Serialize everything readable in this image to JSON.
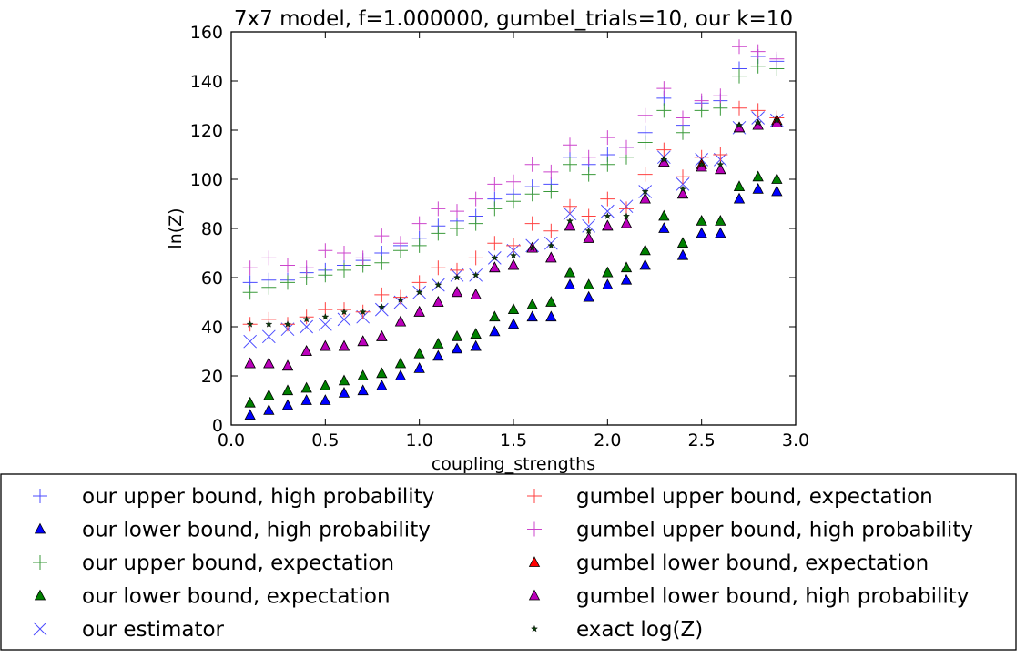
{
  "chart_data": {
    "type": "scatter",
    "title": "7x7 model, f=1.000000, gumbel_trials=10, our k=10",
    "xlabel": "coupling_strengths",
    "ylabel": "ln(Z)",
    "xlim": [
      0.0,
      3.0
    ],
    "ylim": [
      0,
      160
    ],
    "x_ticks": [
      "0.0",
      "0.5",
      "1.0",
      "1.5",
      "2.0",
      "2.5",
      "3.0"
    ],
    "y_ticks": [
      "0",
      "20",
      "40",
      "60",
      "80",
      "100",
      "120",
      "140",
      "160"
    ],
    "grid": false,
    "legend_position": "below plot, two columns",
    "x": [
      0.1,
      0.2,
      0.3,
      0.4,
      0.5,
      0.6,
      0.7,
      0.8,
      0.9,
      1.0,
      1.1,
      1.2,
      1.3,
      1.4,
      1.5,
      1.6,
      1.7,
      1.8,
      1.9,
      2.0,
      2.1,
      2.2,
      2.3,
      2.4,
      2.5,
      2.6,
      2.7,
      2.8,
      2.9
    ],
    "series": [
      {
        "name": "our upper bound, high probability",
        "marker": "plus",
        "color": "#4b4bff",
        "values": [
          58,
          59,
          59,
          62,
          63,
          65,
          67,
          70,
          73,
          76,
          81,
          83,
          85,
          92,
          94,
          97,
          98,
          109,
          106,
          110,
          113,
          119,
          133,
          122,
          131,
          132,
          145,
          150,
          148
        ]
      },
      {
        "name": "our lower bound, high probability",
        "marker": "triangle",
        "color": "#0000ff",
        "values": [
          4,
          6,
          8,
          10,
          10,
          13,
          14,
          16,
          20,
          23,
          28,
          31,
          32,
          38,
          41,
          44,
          44,
          57,
          52,
          57,
          59,
          65,
          80,
          69,
          78,
          78,
          92,
          96,
          95
        ]
      },
      {
        "name": "our upper bound, expectation",
        "marker": "plus",
        "color": "#3a9a3a",
        "values": [
          54,
          56,
          58,
          60,
          61,
          63,
          65,
          66,
          71,
          73,
          78,
          80,
          82,
          88,
          91,
          94,
          95,
          106,
          102,
          106,
          109,
          115,
          128,
          119,
          128,
          129,
          142,
          146,
          145
        ]
      },
      {
        "name": "our lower bound, expectation",
        "marker": "triangle",
        "color": "#008000",
        "values": [
          9,
          12,
          14,
          15,
          16,
          18,
          20,
          21,
          25,
          29,
          33,
          36,
          37,
          44,
          47,
          49,
          50,
          62,
          57,
          62,
          64,
          71,
          85,
          74,
          83,
          83,
          97,
          101,
          100
        ]
      },
      {
        "name": "our estimator",
        "marker": "x",
        "color": "#4b4bff",
        "values": [
          34,
          36,
          39,
          40,
          41,
          43,
          44,
          47,
          50,
          54,
          57,
          61,
          61,
          68,
          71,
          73,
          74,
          86,
          81,
          87,
          89,
          95,
          109,
          98,
          108,
          108,
          121,
          125,
          124
        ]
      },
      {
        "name": "gumbel upper bound, expectation",
        "marker": "plus",
        "color": "#ff4040",
        "values": [
          41,
          43,
          41,
          44,
          47,
          47,
          46,
          53,
          52,
          58,
          64,
          63,
          68,
          74,
          73,
          82,
          79,
          89,
          85,
          92,
          88,
          102,
          112,
          101,
          109,
          110,
          129,
          128,
          125
        ]
      },
      {
        "name": "gumbel upper bound, high probability",
        "marker": "plus",
        "color": "#cc44cc",
        "values": [
          64,
          68,
          65,
          64,
          71,
          70,
          68,
          77,
          74,
          82,
          88,
          87,
          92,
          98,
          99,
          106,
          103,
          114,
          109,
          117,
          113,
          126,
          137,
          125,
          132,
          134,
          154,
          152,
          149
        ]
      },
      {
        "name": "gumbel lower bound, expectation",
        "marker": "triangle",
        "color": "#ff0000",
        "values": [
          25,
          25,
          24,
          30,
          32,
          32,
          34,
          36,
          42,
          46,
          50,
          54,
          53,
          64,
          65,
          72,
          68,
          81,
          76,
          81,
          82,
          92,
          107,
          94,
          106,
          104,
          121,
          122,
          124
        ]
      },
      {
        "name": "gumbel lower bound, high probability",
        "marker": "triangle",
        "color": "#bb00bb",
        "values": [
          25,
          25,
          24,
          30,
          32,
          32,
          34,
          36,
          42,
          46,
          50,
          54,
          53,
          64,
          65,
          72,
          68,
          81,
          76,
          81,
          82,
          92,
          107,
          94,
          105,
          104,
          121,
          122,
          123
        ]
      },
      {
        "name": "exact log(Z)",
        "marker": "star",
        "color": "#0a3d0a",
        "values": [
          41,
          41,
          41,
          43,
          44,
          46,
          46,
          48,
          51,
          54,
          57,
          60,
          61,
          68,
          69,
          72,
          73,
          83,
          79,
          85,
          85,
          95,
          108,
          96,
          106,
          106,
          122,
          123,
          124
        ]
      }
    ],
    "legend": [
      {
        "series": 0,
        "col": 0,
        "row": 0
      },
      {
        "series": 1,
        "col": 0,
        "row": 1
      },
      {
        "series": 2,
        "col": 0,
        "row": 2
      },
      {
        "series": 3,
        "col": 0,
        "row": 3
      },
      {
        "series": 4,
        "col": 0,
        "row": 4
      },
      {
        "series": 5,
        "col": 1,
        "row": 0
      },
      {
        "series": 6,
        "col": 1,
        "row": 1
      },
      {
        "series": 7,
        "col": 1,
        "row": 2
      },
      {
        "series": 8,
        "col": 1,
        "row": 3
      },
      {
        "series": 9,
        "col": 1,
        "row": 4
      }
    ]
  }
}
